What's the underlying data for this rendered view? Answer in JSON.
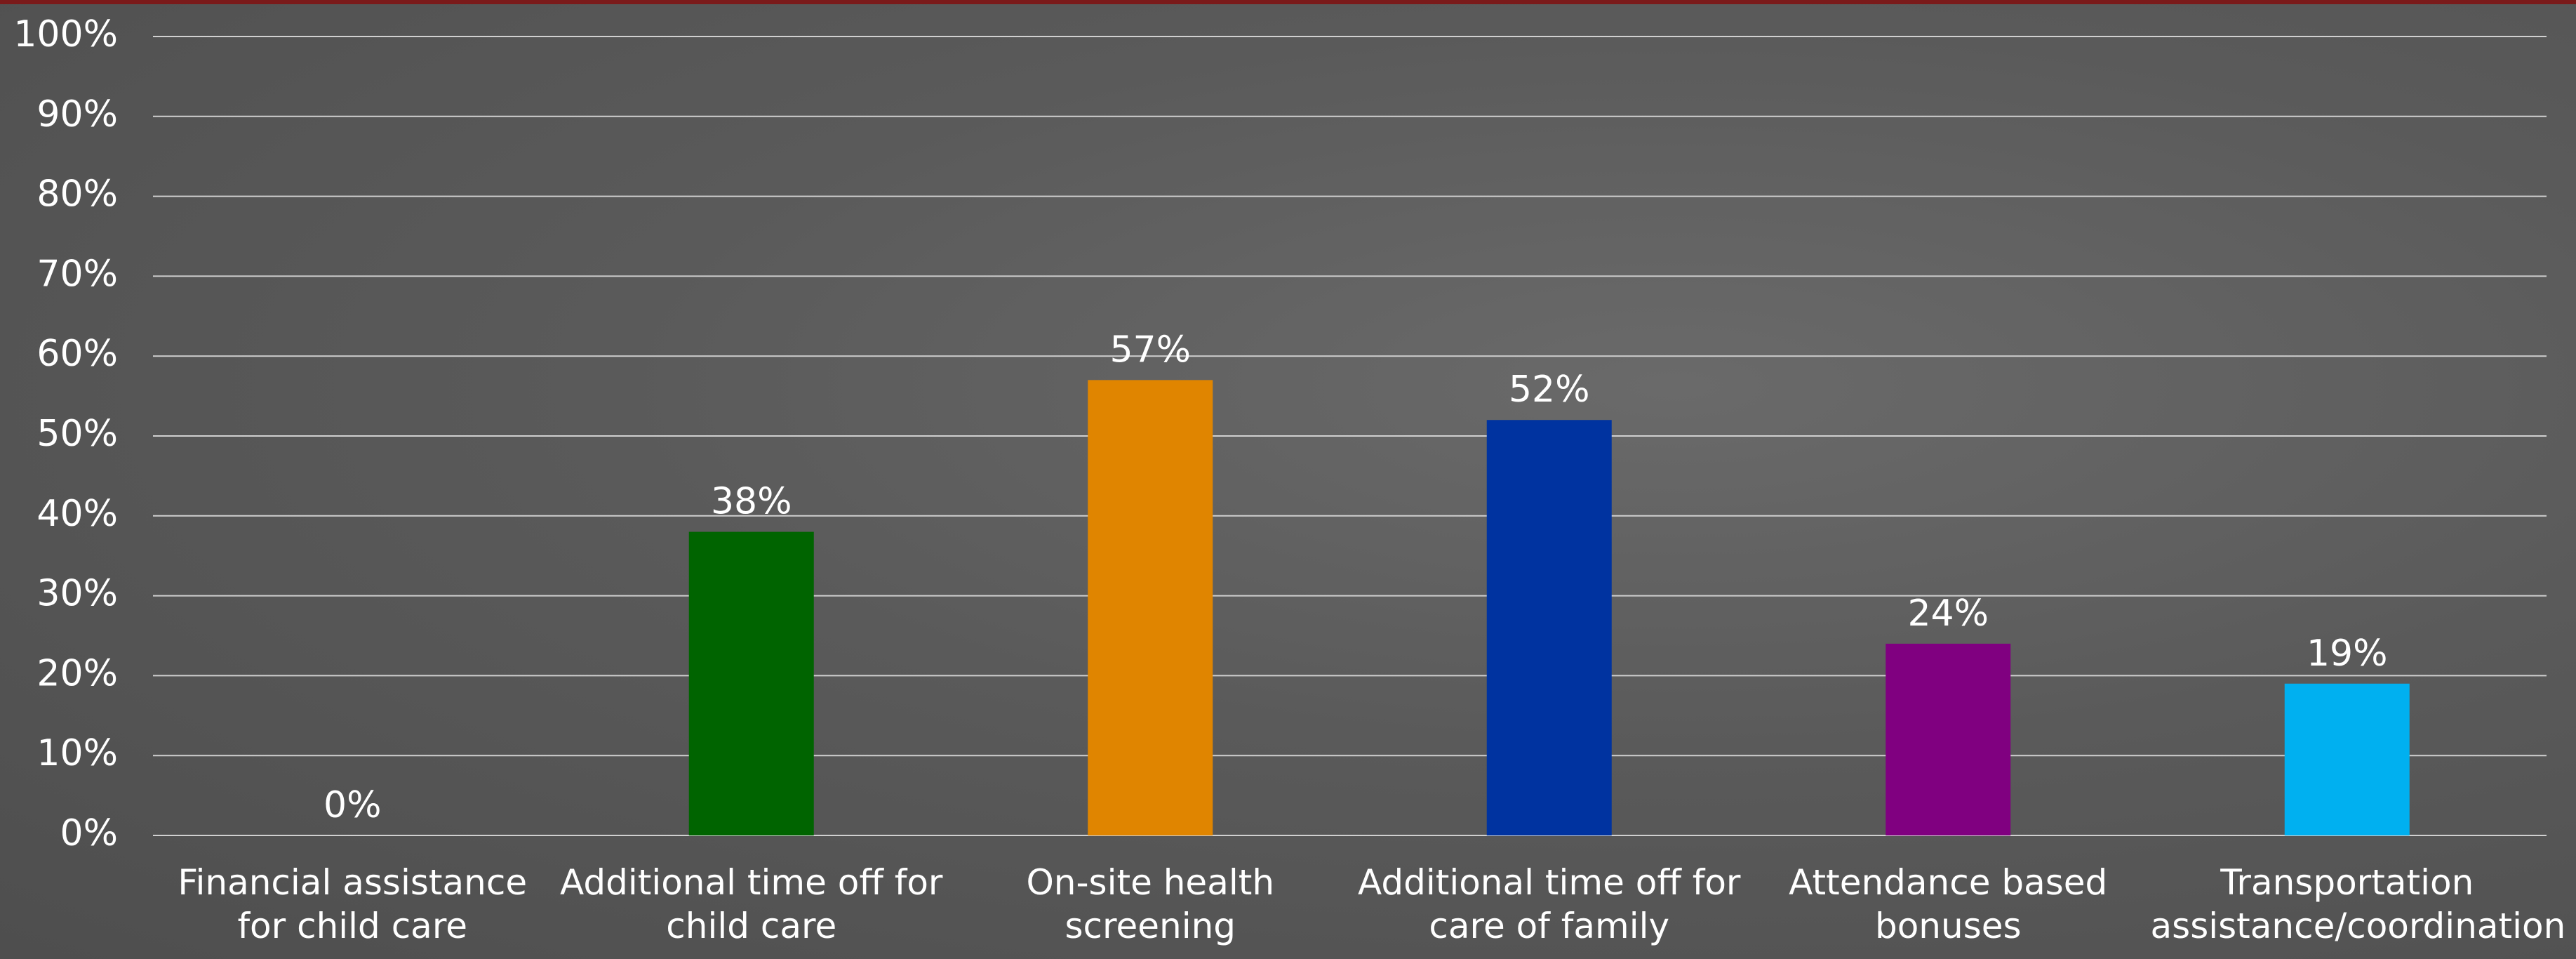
{
  "chart_data": {
    "type": "bar",
    "categories": [
      "Financial assistance for child care",
      "Additional time off for child care",
      "On-site health screening",
      "Additional time off for care of family",
      "Attendance based bonuses",
      "Transportation assistance/coordination"
    ],
    "values": [
      0,
      38,
      57,
      52,
      24,
      19
    ],
    "value_labels": [
      "0%",
      "38%",
      "57%",
      "52%",
      "24%",
      "19%"
    ],
    "colors": [
      "#006400",
      "#006400",
      "#e08500",
      "#0033a0",
      "#800080",
      "#00b0f0"
    ],
    "ylim": [
      0,
      100
    ],
    "yticks": [
      {
        "value": 0,
        "label": "0%"
      },
      {
        "value": 10,
        "label": "10%"
      },
      {
        "value": 20,
        "label": "20%"
      },
      {
        "value": 30,
        "label": "30%"
      },
      {
        "value": 40,
        "label": "40%"
      },
      {
        "value": 50,
        "label": "50%"
      },
      {
        "value": 60,
        "label": "60%"
      },
      {
        "value": 70,
        "label": "70%"
      },
      {
        "value": 80,
        "label": "80%"
      },
      {
        "value": 90,
        "label": "90%"
      },
      {
        "value": 100,
        "label": "100%"
      }
    ],
    "grid": true
  }
}
